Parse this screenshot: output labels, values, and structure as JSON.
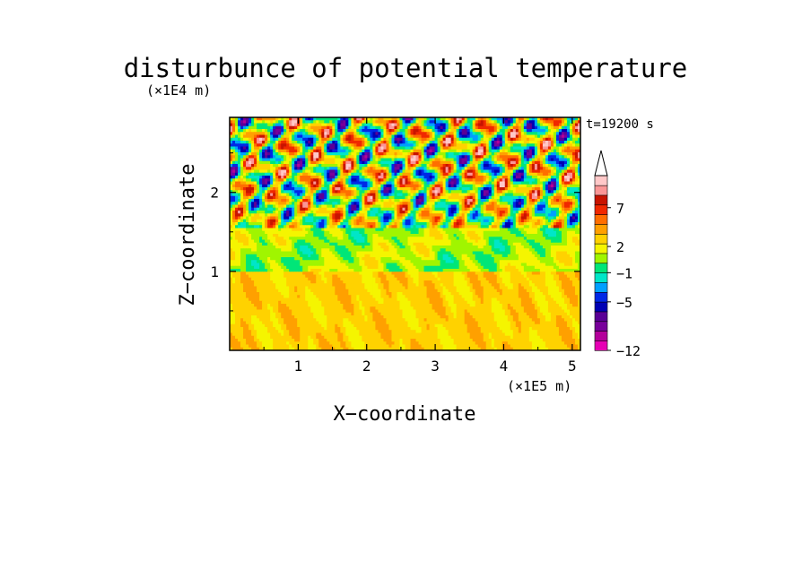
{
  "chart_data": {
    "type": "heatmap",
    "title": "disturbunce of potential temperature",
    "xlabel": "X−coordinate",
    "ylabel": "Z−coordinate",
    "x_unit": "(×1E5 m)",
    "y_unit": "(×1E4 m)",
    "time_label": "t=19200 s",
    "xlim": [
      0,
      5.12
    ],
    "ylim": [
      0,
      2.95
    ],
    "x_ticks": [
      "1",
      "2",
      "3",
      "4",
      "5"
    ],
    "y_ticks": [
      "1",
      "2"
    ],
    "colorbar": {
      "levels": [
        "−12",
        "-11",
        "-10",
        "-9",
        "-8",
        "-7",
        "-6",
        "−5",
        "-4",
        "-3",
        "-2",
        "−1",
        "0",
        "1",
        "2",
        "3",
        "4",
        "5",
        "6",
        "7",
        "8",
        "9"
      ],
      "labeled": [
        "−12",
        "−5",
        "−1",
        "2",
        "7"
      ],
      "colors": [
        "#e600b4",
        "#b4009b",
        "#78009b",
        "#5a0096",
        "#0000b4",
        "#0028e6",
        "#00a0ff",
        "#00e6c8",
        "#00e678",
        "#a0f500",
        "#f5f500",
        "#ffd200",
        "#ffa000",
        "#ff6e00",
        "#f02800",
        "#c81400",
        "#fa9696",
        "#ffc8c8"
      ],
      "extend": "max"
    },
    "layers": [
      {
        "z_range": [
          0,
          1.0
        ],
        "dominant": "yellow-orange",
        "approx_values": [
          1,
          3
        ]
      },
      {
        "z_range": [
          1.0,
          1.5
        ],
        "dominant": "green-yellow",
        "approx_values": [
          -1,
          2
        ]
      },
      {
        "z_range": [
          1.5,
          2.95
        ],
        "dominant": "mixed red/blue wave pattern",
        "approx_values": [
          -8,
          7
        ]
      }
    ]
  }
}
